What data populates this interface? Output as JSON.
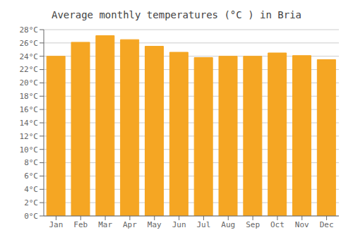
{
  "chart_data": {
    "type": "bar",
    "title": "Average monthly temperatures (°C ) in Bria",
    "categories": [
      "Jan",
      "Feb",
      "Mar",
      "Apr",
      "May",
      "Jun",
      "Jul",
      "Aug",
      "Sep",
      "Oct",
      "Nov",
      "Dec"
    ],
    "values": [
      24.0,
      26.1,
      27.1,
      26.5,
      25.5,
      24.6,
      23.8,
      24.0,
      24.0,
      24.5,
      24.1,
      23.5
    ],
    "color": "#F5A623",
    "ylim": [
      0,
      28
    ],
    "yticks": [
      {
        "value": 0,
        "label": "0°C"
      },
      {
        "value": 2,
        "label": "2°C"
      },
      {
        "value": 4,
        "label": "4°C"
      },
      {
        "value": 6,
        "label": "6°C"
      },
      {
        "value": 8,
        "label": "8°C"
      },
      {
        "value": 10,
        "label": "10°C"
      },
      {
        "value": 12,
        "label": "12°C"
      },
      {
        "value": 14,
        "label": "14°C"
      },
      {
        "value": 16,
        "label": "16°C"
      },
      {
        "value": 18,
        "label": "18°C"
      },
      {
        "value": 20,
        "label": "20°C"
      },
      {
        "value": 22,
        "label": "22°C"
      },
      {
        "value": 24,
        "label": "24°C"
      },
      {
        "value": 26,
        "label": "26°C"
      },
      {
        "value": 28,
        "label": "28°C"
      }
    ],
    "grid": true
  }
}
